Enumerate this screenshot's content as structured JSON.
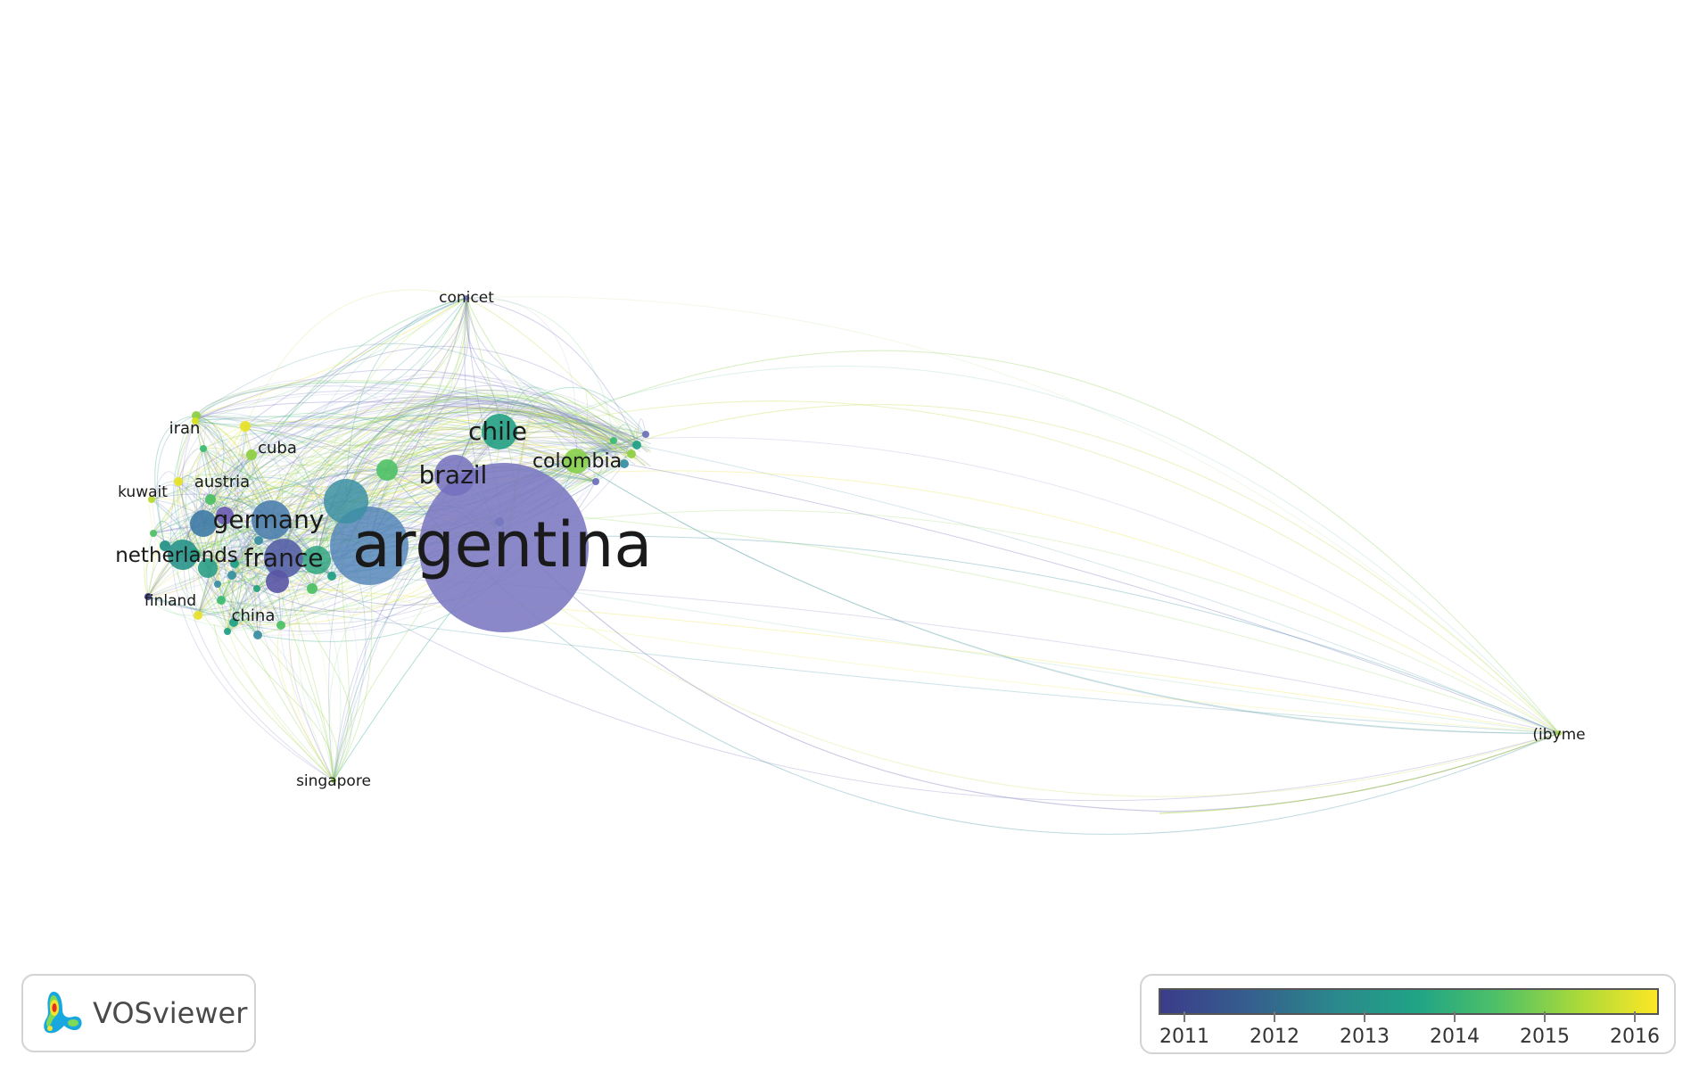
{
  "network": {
    "nodes": [
      {
        "id": "argentina",
        "label": "argentina",
        "color": "#7b77c2",
        "year": 2011
      },
      {
        "id": "brazil",
        "label": "brazil",
        "color": "#7470be",
        "year": 2011
      },
      {
        "id": "chile",
        "label": "chile",
        "color": "#23a086",
        "year": 2013.5
      },
      {
        "id": "colombia",
        "label": "colombia",
        "color": "#86cf4a",
        "year": 2015
      },
      {
        "id": "germany",
        "label": "germany",
        "color": "#4e7fae",
        "year": 2012.2
      },
      {
        "id": "france",
        "label": "france",
        "color": "#5661a8",
        "year": 2011.5
      },
      {
        "id": "netherlands",
        "label": "netherlands",
        "color": "#28938a",
        "year": 2013
      },
      {
        "id": "conicet",
        "label": "conicet",
        "color": "#6e6bb8",
        "year": 2011
      },
      {
        "id": "iran",
        "label": "iran",
        "color": "#d8e21f",
        "year": 2016
      },
      {
        "id": "cuba",
        "label": "cuba",
        "color": "#8fd045",
        "year": 2015.2
      },
      {
        "id": "austria",
        "label": "austria",
        "color": "#e6df28",
        "year": 2016
      },
      {
        "id": "kuwait",
        "label": "kuwait",
        "color": "#bcd935",
        "year": 2015.6
      },
      {
        "id": "finland",
        "label": "finland",
        "color": "#4a4a96",
        "year": 2011
      },
      {
        "id": "china",
        "label": "china",
        "color": "#3ebc72",
        "year": 2014.3
      },
      {
        "id": "singapore",
        "label": "singapore",
        "color": "#8fd045",
        "year": 2015
      },
      {
        "id": "ibyme",
        "label": "(ibyme",
        "color": "#a6d53a",
        "year": 2015.5
      }
    ]
  },
  "brand": {
    "name": "VOSviewer",
    "icon": "vosviewer-logo-icon"
  },
  "legend": {
    "ticks": [
      "2011",
      "2012",
      "2013",
      "2014",
      "2015",
      "2016"
    ],
    "colors": {
      "start": "#3b3c8a",
      "mid": "#20a486",
      "end": "#fde725"
    }
  }
}
